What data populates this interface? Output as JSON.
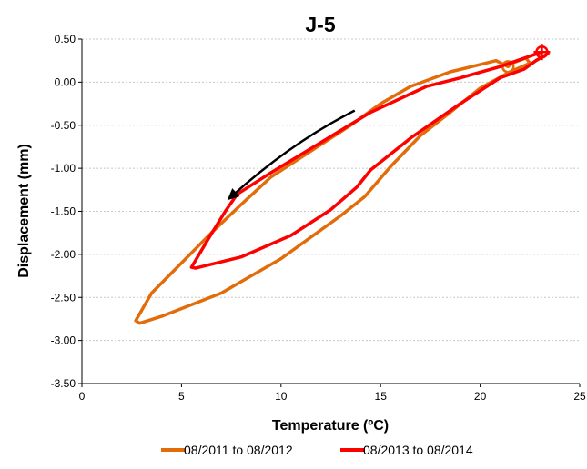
{
  "chart_data": {
    "type": "line",
    "title": "J-5",
    "xlabel": "Temperature (ºC)",
    "ylabel": "Displacement (mm)",
    "xlim": [
      0,
      25
    ],
    "ylim": [
      -3.5,
      0.5
    ],
    "xticks": [
      0,
      5,
      10,
      15,
      20,
      25
    ],
    "xtick_labels": [
      "0",
      "5",
      "10",
      "15",
      "20",
      "25"
    ],
    "yticks": [
      0.5,
      0,
      -0.5,
      -1,
      -1.5,
      -2,
      -2.5,
      -3,
      -3.5
    ],
    "ytick_labels": [
      "0.50",
      "0.00",
      "-0.50",
      "-1.00",
      "-1.50",
      "-2.00",
      "-2.50",
      "-3.00",
      "-3.50"
    ],
    "grid": "horizontal dashed",
    "legend_position": "bottom",
    "series": [
      {
        "name": "08/2011 to 08/2012",
        "color": "#E36C0A",
        "marker": "circle-start",
        "x": [
          21.4,
          20.8,
          18.5,
          16.5,
          15.0,
          13.5,
          11.5,
          9.5,
          8.0,
          6.5,
          5.0,
          3.5,
          2.7,
          2.9,
          4.0,
          7.0,
          10.0,
          13.0,
          14.2,
          15.5,
          17.0,
          18.5,
          20.0,
          21.5,
          22.5,
          22.3,
          21.6,
          21.4
        ],
        "y": [
          0.18,
          0.25,
          0.12,
          -0.05,
          -0.25,
          -0.5,
          -0.8,
          -1.1,
          -1.42,
          -1.75,
          -2.1,
          -2.45,
          -2.77,
          -2.8,
          -2.72,
          -2.45,
          -2.05,
          -1.55,
          -1.33,
          -0.98,
          -0.62,
          -0.35,
          -0.07,
          0.12,
          0.22,
          0.28,
          0.22,
          0.18
        ]
      },
      {
        "name": "08/2013 to 08/2014",
        "color": "#FF0000",
        "marker": "circle-cross-start",
        "x": [
          23.1,
          21.0,
          19.0,
          17.3,
          14.5,
          12.0,
          9.5,
          7.8,
          7.2,
          6.4,
          5.5,
          5.7,
          8.0,
          10.5,
          12.5,
          13.8,
          14.5,
          16.5,
          19.0,
          21.0,
          22.2,
          22.8,
          23.4
        ],
        "y": [
          0.35,
          0.18,
          0.05,
          -0.05,
          -0.35,
          -0.7,
          -1.05,
          -1.3,
          -1.5,
          -1.8,
          -2.15,
          -2.16,
          -2.03,
          -1.78,
          -1.48,
          -1.22,
          -1.02,
          -0.65,
          -0.25,
          0.05,
          0.15,
          0.25,
          0.33
        ]
      }
    ],
    "annotations": [
      {
        "type": "arrow",
        "color": "#000000",
        "description": "curved arrow pointing down-left along the curves"
      }
    ]
  },
  "legend": {
    "items": [
      {
        "label": "08/2011 to 08/2012",
        "color": "#E36C0A"
      },
      {
        "label": "08/2013 to 08/2014",
        "color": "#FF0000"
      }
    ]
  }
}
